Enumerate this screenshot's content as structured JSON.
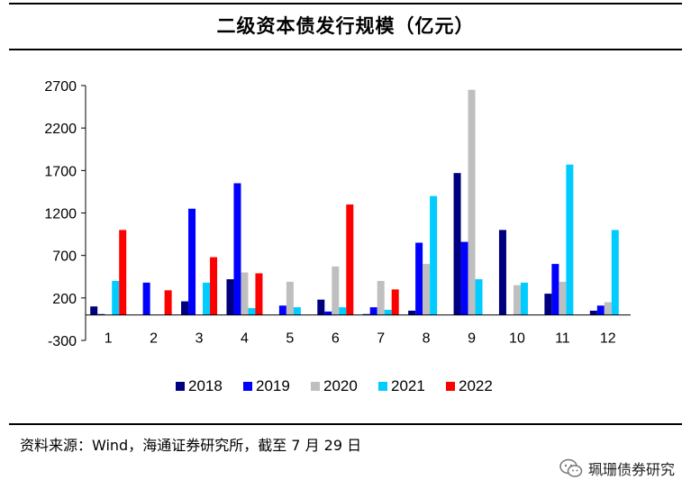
{
  "header": {
    "title": "二级资本债发行规模（亿元）"
  },
  "footer": {
    "source": "资料来源：Wind，海通证券研究所，截至 7 月 29 日",
    "watermark": "珮珊债券研究"
  },
  "colors": {
    "2018": "#00007F",
    "2019": "#0000FF",
    "2020": "#BFBFBF",
    "2021": "#00CCFF",
    "2022": "#FF0000"
  },
  "chart_data": {
    "type": "bar",
    "title": "二级资本债发行规模（亿元）",
    "xlabel": "",
    "ylabel": "",
    "ylim": [
      -300,
      2700
    ],
    "yticks": [
      -300,
      200,
      700,
      1200,
      1700,
      2200,
      2700
    ],
    "categories": [
      "1",
      "2",
      "3",
      "4",
      "5",
      "6",
      "7",
      "8",
      "9",
      "10",
      "11",
      "12"
    ],
    "series": [
      {
        "name": "2018",
        "values": [
          100,
          0,
          160,
          420,
          0,
          180,
          10,
          50,
          1670,
          1000,
          250,
          50
        ]
      },
      {
        "name": "2019",
        "values": [
          10,
          380,
          1250,
          1550,
          110,
          40,
          90,
          850,
          860,
          0,
          600,
          110
        ]
      },
      {
        "name": "2020",
        "values": [
          0,
          0,
          0,
          500,
          390,
          570,
          400,
          600,
          2650,
          350,
          390,
          150
        ]
      },
      {
        "name": "2021",
        "values": [
          400,
          0,
          380,
          80,
          90,
          90,
          60,
          1400,
          420,
          380,
          1770,
          1000
        ]
      },
      {
        "name": "2022",
        "values": [
          1000,
          290,
          680,
          490,
          0,
          1300,
          300,
          0,
          0,
          0,
          0,
          0
        ]
      }
    ],
    "legend": {
      "position": "bottom"
    },
    "grid": false
  }
}
